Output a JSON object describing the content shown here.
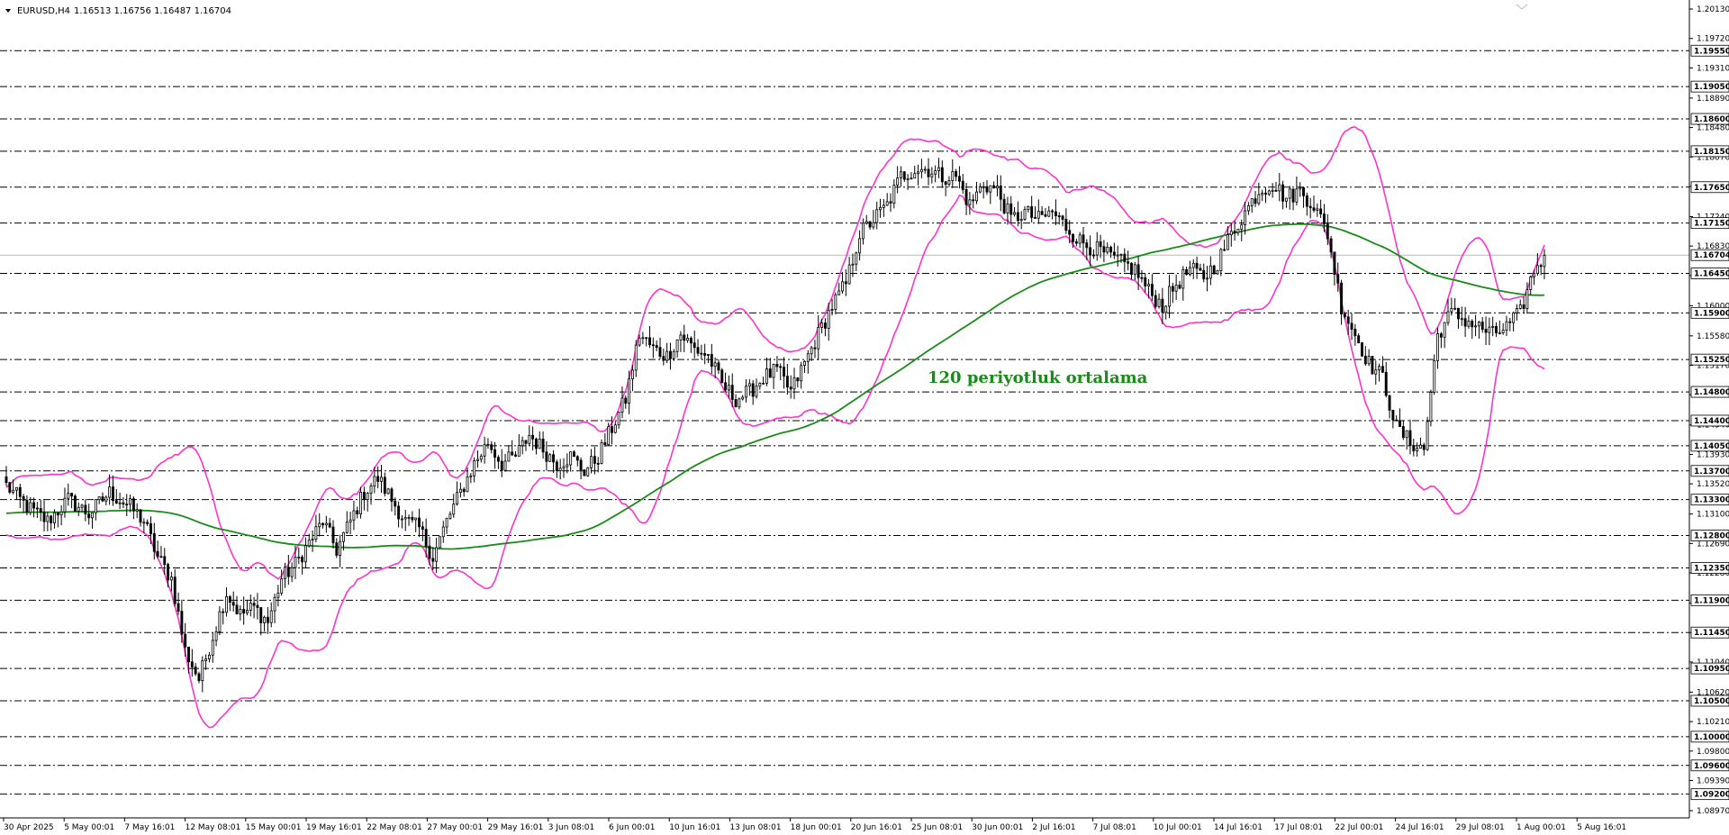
{
  "header": {
    "symbol": "EURUSD,H4",
    "ohlc": "1.16513 1.16756 1.16487 1.16704"
  },
  "annotation": {
    "text": "120 periyotluk ortalama",
    "color": "#1a8a1a"
  },
  "colors": {
    "candle": "#000000",
    "bands": "#ff33cc",
    "ma": "#1a8a1a",
    "levels": "#000000",
    "current_line": "#b8b8b8",
    "background": "#ffffff"
  },
  "chart_data": {
    "type": "candlestick",
    "title": "",
    "grid": false,
    "ylim": [
      1.0897,
      1.2013
    ],
    "y_ticks": [
      "1.20130",
      "1.19720",
      "1.19310",
      "1.18890",
      "1.18480",
      "1.18070",
      "1.17660",
      "1.17240",
      "1.16830",
      "1.16420",
      "1.16000",
      "1.15580",
      "1.15170",
      "1.14760",
      "1.14340",
      "1.13930",
      "1.13520",
      "1.13100",
      "1.12690",
      "1.12280",
      "1.11860",
      "1.11450",
      "1.11040",
      "1.10620",
      "1.10210",
      "1.09800",
      "1.09390",
      "1.08970"
    ],
    "levels": [
      "1.19550",
      "1.19050",
      "1.18600",
      "1.18150",
      "1.17650",
      "1.17150",
      "1.16450",
      "1.15900",
      "1.15250",
      "1.14800",
      "1.14400",
      "1.14050",
      "1.13700",
      "1.13300",
      "1.12800",
      "1.12350",
      "1.11900",
      "1.11450",
      "1.10950",
      "1.10500",
      "1.10000",
      "1.09600",
      "1.09200"
    ],
    "current_price": "1.16704",
    "x_labels": [
      "30 Apr 2025",
      "5 May 00:01",
      "7 May 16:01",
      "12 May 08:01",
      "15 May 00:01",
      "19 May 16:01",
      "22 May 08:01",
      "27 May 00:01",
      "29 May 16:01",
      "3 Jun 08:01",
      "6 Jun 00:01",
      "10 Jun 16:01",
      "13 Jun 08:01",
      "18 Jun 00:01",
      "20 Jun 16:01",
      "25 Jun 08:01",
      "30 Jun 00:01",
      "2 Jul 16:01",
      "7 Jul 08:01",
      "10 Jul 00:01",
      "14 Jul 16:01",
      "17 Jul 08:01",
      "22 Jul 00:01",
      "24 Jul 16:01",
      "29 Jul 08:01",
      "1 Aug 00:01",
      "5 Aug 16:01"
    ],
    "series": [
      {
        "name": "EURUSD H4 close (approx.)",
        "style": "candlestick",
        "values": [
          [
            0,
            1.135
          ],
          [
            6,
            1.132
          ],
          [
            12,
            1.13
          ],
          [
            18,
            1.133
          ],
          [
            24,
            1.131
          ],
          [
            30,
            1.134
          ],
          [
            36,
            1.132
          ],
          [
            40,
            1.13
          ],
          [
            44,
            1.125
          ],
          [
            48,
            1.122
          ],
          [
            52,
            1.112
          ],
          [
            56,
            1.108
          ],
          [
            60,
            1.114
          ],
          [
            64,
            1.12
          ],
          [
            68,
            1.117
          ],
          [
            72,
            1.118
          ],
          [
            76,
            1.116
          ],
          [
            80,
            1.122
          ],
          [
            84,
            1.124
          ],
          [
            88,
            1.127
          ],
          [
            92,
            1.13
          ],
          [
            96,
            1.126
          ],
          [
            100,
            1.13
          ],
          [
            104,
            1.134
          ],
          [
            108,
            1.136
          ],
          [
            112,
            1.133
          ],
          [
            116,
            1.13
          ],
          [
            120,
            1.129
          ],
          [
            124,
            1.125
          ],
          [
            128,
            1.13
          ],
          [
            132,
            1.134
          ],
          [
            136,
            1.138
          ],
          [
            140,
            1.141
          ],
          [
            144,
            1.138
          ],
          [
            148,
            1.139
          ],
          [
            152,
            1.142
          ],
          [
            156,
            1.14
          ],
          [
            160,
            1.138
          ],
          [
            164,
            1.139
          ],
          [
            168,
            1.137
          ],
          [
            172,
            1.139
          ],
          [
            176,
            1.143
          ],
          [
            180,
            1.147
          ],
          [
            184,
            1.156
          ],
          [
            188,
            1.154
          ],
          [
            192,
            1.153
          ],
          [
            196,
            1.156
          ],
          [
            200,
            1.154
          ],
          [
            204,
            1.153
          ],
          [
            208,
            1.149
          ],
          [
            212,
            1.147
          ],
          [
            216,
            1.148
          ],
          [
            220,
            1.15
          ],
          [
            224,
            1.151
          ],
          [
            228,
            1.148
          ],
          [
            232,
            1.152
          ],
          [
            236,
            1.156
          ],
          [
            240,
            1.16
          ],
          [
            244,
            1.163
          ],
          [
            248,
            1.17
          ],
          [
            252,
            1.172
          ],
          [
            256,
            1.174
          ],
          [
            260,
            1.178
          ],
          [
            264,
            1.179
          ],
          [
            268,
            1.179
          ],
          [
            272,
            1.178
          ],
          [
            276,
            1.178
          ],
          [
            280,
            1.174
          ],
          [
            284,
            1.177
          ],
          [
            288,
            1.176
          ],
          [
            292,
            1.172
          ],
          [
            296,
            1.173
          ],
          [
            300,
            1.172
          ],
          [
            304,
            1.173
          ],
          [
            308,
            1.171
          ],
          [
            312,
            1.169
          ],
          [
            316,
            1.168
          ],
          [
            320,
            1.167
          ],
          [
            324,
            1.166
          ],
          [
            328,
            1.165
          ],
          [
            332,
            1.162
          ],
          [
            336,
            1.16
          ],
          [
            340,
            1.163
          ],
          [
            344,
            1.165
          ],
          [
            348,
            1.164
          ],
          [
            352,
            1.166
          ],
          [
            356,
            1.17
          ],
          [
            360,
            1.173
          ],
          [
            364,
            1.176
          ],
          [
            368,
            1.177
          ],
          [
            372,
            1.175
          ],
          [
            376,
            1.176
          ],
          [
            380,
            1.174
          ],
          [
            384,
            1.17
          ],
          [
            388,
            1.16
          ],
          [
            392,
            1.156
          ],
          [
            396,
            1.152
          ],
          [
            400,
            1.15
          ],
          [
            404,
            1.143
          ],
          [
            408,
            1.141
          ],
          [
            412,
            1.14
          ],
          [
            416,
            1.156
          ],
          [
            420,
            1.159
          ],
          [
            424,
            1.158
          ],
          [
            428,
            1.157
          ],
          [
            432,
            1.156
          ],
          [
            436,
            1.157
          ],
          [
            440,
            1.159
          ],
          [
            444,
            1.165
          ],
          [
            447,
            1.167
          ]
        ]
      },
      {
        "name": "Bollinger upper (approx.)",
        "style": "line"
      },
      {
        "name": "Bollinger lower (approx.)",
        "style": "line"
      },
      {
        "name": "120 periyotluk ortalama",
        "style": "line"
      }
    ],
    "annotations": [
      "120 periyotluk ortalama"
    ]
  }
}
